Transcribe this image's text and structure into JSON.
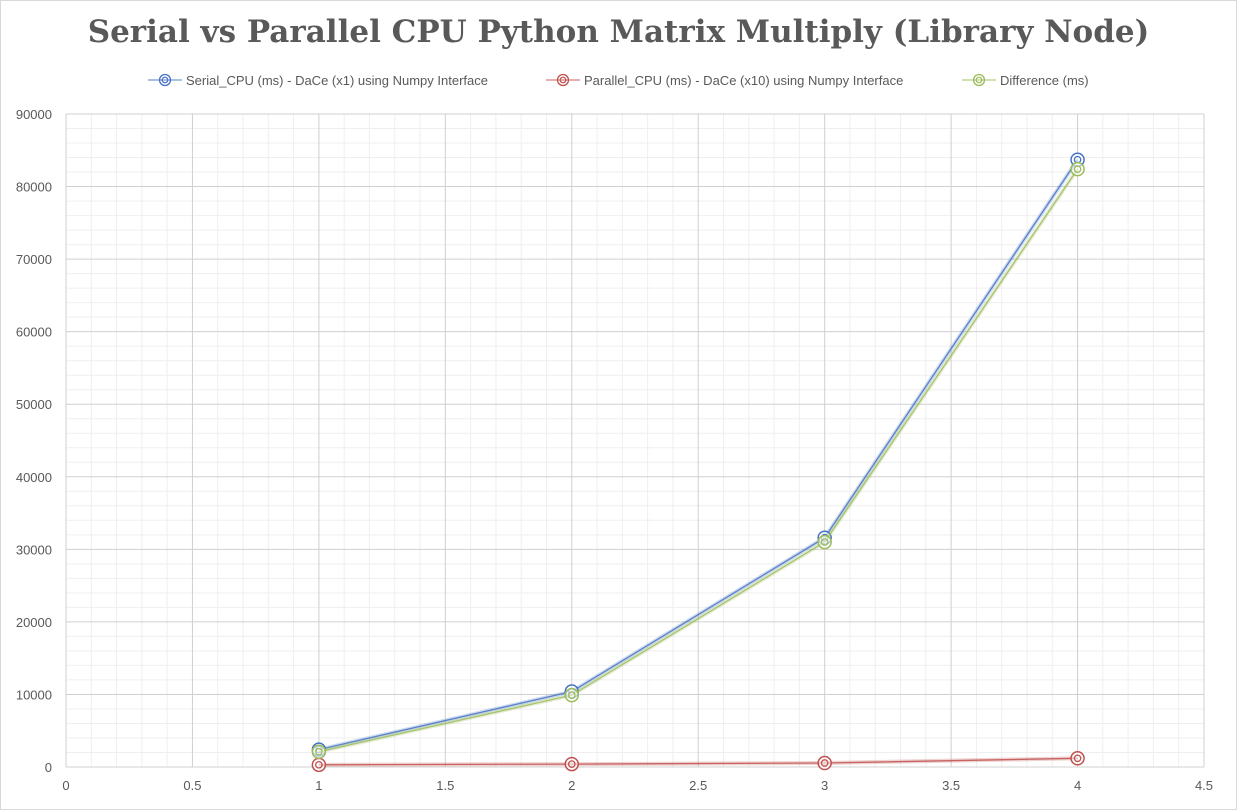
{
  "chart_data": {
    "type": "scatter",
    "title": "Serial vs Parallel CPU Python Matrix Multiply (Library Node)",
    "xlim": [
      0,
      4.5
    ],
    "ylim": [
      0,
      90000
    ],
    "xticks": [
      0,
      0.5,
      1,
      1.5,
      2,
      2.5,
      3,
      3.5,
      4,
      4.5
    ],
    "xtick_labels": [
      "0",
      "0.5",
      "1",
      "1.5",
      "2",
      "2.5",
      "3",
      "3.5",
      "4",
      "4.5"
    ],
    "yticks": [
      0,
      10000,
      20000,
      30000,
      40000,
      50000,
      60000,
      70000,
      80000,
      90000
    ],
    "ytick_labels": [
      "0",
      "10000",
      "20000",
      "30000",
      "40000",
      "50000",
      "60000",
      "70000",
      "80000",
      "90000"
    ],
    "grid": true,
    "legend_position": "top",
    "series": [
      {
        "name": "Serial_CPU (ms) - DaCe (x1) using Numpy Interface",
        "color": "#4472c4",
        "x": [
          1,
          2,
          3,
          4
        ],
        "y": [
          2400,
          10400,
          31600,
          83700
        ]
      },
      {
        "name": "Parallel_CPU (ms) - DaCe (x10) using Numpy Interface",
        "color": "#c0504d",
        "x": [
          1,
          2,
          3,
          4
        ],
        "y": [
          300,
          400,
          550,
          1200
        ]
      },
      {
        "name": "Difference (ms)",
        "color": "#9bbb59",
        "x": [
          1,
          2,
          3,
          4
        ],
        "y": [
          2100,
          9900,
          31000,
          82400
        ]
      }
    ]
  }
}
